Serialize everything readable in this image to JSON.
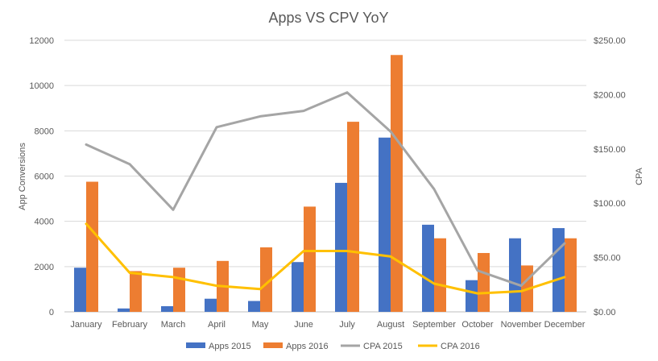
{
  "chart_data": {
    "type": "bar",
    "title": "Apps VS CPV YoY",
    "categories": [
      "January",
      "February",
      "March",
      "April",
      "May",
      "June",
      "July",
      "August",
      "September",
      "October",
      "November",
      "December"
    ],
    "y_left": {
      "label": "App Conversions",
      "ticks": [
        "0",
        "2000",
        "4000",
        "6000",
        "8000",
        "10000",
        "12000"
      ],
      "range": [
        0,
        12000
      ]
    },
    "y_right": {
      "label": "CPA",
      "ticks": [
        "$0.00",
        "$50.00",
        "$100.00",
        "$150.00",
        "$200.00",
        "$250.00"
      ],
      "range": [
        0,
        250
      ]
    },
    "grid": true,
    "legend_position": "bottom",
    "series": [
      {
        "name": "Apps 2015",
        "kind": "bar",
        "axis": "left",
        "color": "#4472C4",
        "values": [
          1950,
          150,
          250,
          580,
          480,
          2200,
          5700,
          7700,
          3850,
          1400,
          3250,
          3700
        ]
      },
      {
        "name": "Apps 2016",
        "kind": "bar",
        "axis": "left",
        "color": "#ED7D31",
        "values": [
          5750,
          1800,
          1950,
          2250,
          2850,
          4650,
          8400,
          11350,
          3250,
          2600,
          2050,
          3250
        ]
      },
      {
        "name": "CPA 2015",
        "kind": "line",
        "axis": "right",
        "color": "#A5A5A5",
        "values": [
          154,
          136,
          94,
          170,
          180,
          185,
          202,
          166,
          113,
          38,
          24,
          63
        ]
      },
      {
        "name": "CPA 2016",
        "kind": "line",
        "axis": "right",
        "color": "#FFC000",
        "values": [
          81,
          36,
          32,
          24,
          21,
          56,
          56,
          51,
          26,
          17,
          19,
          32
        ]
      }
    ]
  }
}
